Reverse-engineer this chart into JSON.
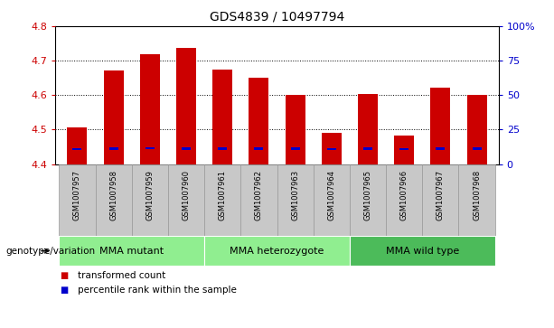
{
  "title": "GDS4839 / 10497794",
  "samples": [
    "GSM1007957",
    "GSM1007958",
    "GSM1007959",
    "GSM1007960",
    "GSM1007961",
    "GSM1007962",
    "GSM1007963",
    "GSM1007964",
    "GSM1007965",
    "GSM1007966",
    "GSM1007967",
    "GSM1007968"
  ],
  "red_values": [
    4.505,
    4.672,
    4.718,
    4.738,
    4.673,
    4.65,
    4.602,
    4.49,
    4.603,
    4.483,
    4.622,
    4.6
  ],
  "blue_values": [
    4.443,
    4.445,
    4.446,
    4.445,
    4.445,
    4.444,
    4.444,
    4.443,
    4.444,
    4.443,
    4.444,
    4.444
  ],
  "base_value": 4.4,
  "ylim_left": [
    4.4,
    4.8
  ],
  "yticks_left": [
    4.4,
    4.5,
    4.6,
    4.7,
    4.8
  ],
  "yticks_right": [
    0,
    25,
    50,
    75,
    100
  ],
  "ytick_labels_right": [
    "0",
    "25",
    "50",
    "75",
    "100%"
  ],
  "groups": [
    {
      "label": "MMA mutant",
      "start": 0,
      "end": 4,
      "color": "#90EE90"
    },
    {
      "label": "MMA heterozygote",
      "start": 4,
      "end": 8,
      "color": "#90EE90"
    },
    {
      "label": "MMA wild type",
      "start": 8,
      "end": 12,
      "color": "#4CBB5A"
    }
  ],
  "bar_width": 0.55,
  "red_color": "#CC0000",
  "blue_color": "#0000CC",
  "tick_label_color": "#CC0000",
  "right_tick_color": "#0000CC",
  "bg_plot": "#FFFFFF",
  "bg_xticklabel": "#C8C8C8",
  "legend_red": "transformed count",
  "legend_blue": "percentile rank within the sample",
  "genotype_label": "genotype/variation",
  "grid_color": "black"
}
